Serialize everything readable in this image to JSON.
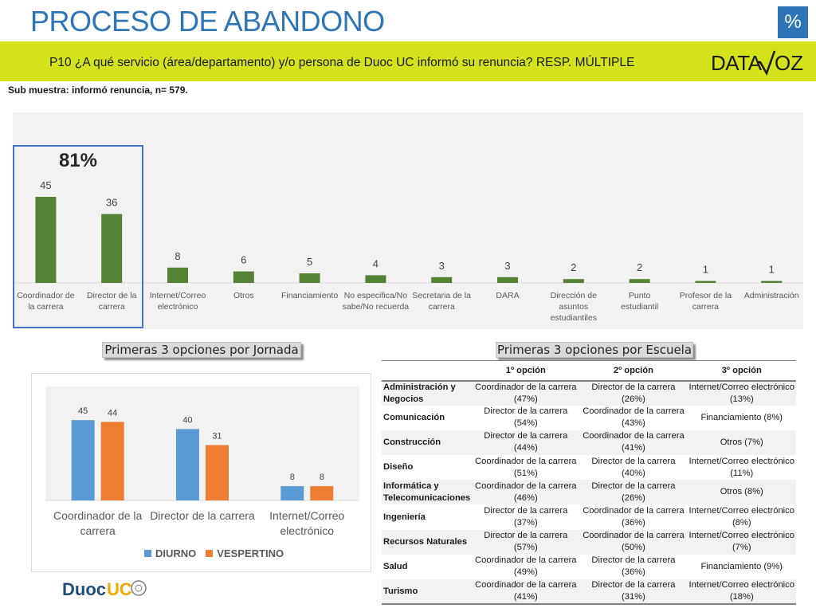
{
  "header": {
    "title": "PROCESO DE ABANDONO",
    "percent_badge": "%",
    "question": "P10 ¿A qué servicio (área/departamento) y/o persona de Duoc UC informó su renuncia? RESP. MÚLTIPLE",
    "logo_text": "DATAVOZ",
    "submuestra": "Sub muestra: informó renuncia, n= 579."
  },
  "highlight": {
    "label": "81%"
  },
  "colors": {
    "green": "#548235",
    "diurno": "#5B9BD5",
    "vespertino": "#ED7D31",
    "accent": "#D3E21B",
    "title": "#2E75B6"
  },
  "sections": {
    "jornada_title": "Primeras 3 opciones por Jornada",
    "escuela_title": "Primeras 3 opciones por Escuela"
  },
  "chart_data": [
    {
      "type": "bar",
      "categories": [
        "Coordinador de la carrera",
        "Director de la carrera",
        "Internet/Correo electrónico",
        "Otros",
        "Financiamiento",
        "No especifica/No sabe/No recuerda",
        "Secretaria de la carrera",
        "DARA",
        "Dirección de asuntos estudiantiles",
        "Punto estudiantil",
        "Profesor de la carrera",
        "Administración"
      ],
      "values": [
        45,
        36,
        8,
        6,
        5,
        4,
        3,
        3,
        2,
        2,
        1,
        1
      ],
      "ylim": [
        0,
        50
      ],
      "grid": false,
      "legend": "none"
    },
    {
      "type": "bar",
      "categories": [
        "Coordinador de la carrera",
        "Director de la carrera",
        "Internet/Correo electrónico"
      ],
      "series": [
        {
          "name": "DIURNO",
          "values": [
            45,
            40,
            8
          ]
        },
        {
          "name": "VESPERTINO",
          "values": [
            44,
            31,
            8
          ]
        }
      ],
      "ylim": [
        0,
        50
      ],
      "grid": false,
      "legend": "bottom"
    }
  ],
  "escuela_table": {
    "headers": [
      "",
      "1º opción",
      "2º opción",
      "3º opción"
    ],
    "rows": [
      [
        "Administración y Negocios",
        "Coordinador de la carrera (47%)",
        "Director de la carrera (26%)",
        "Internet/Correo electrónico (13%)"
      ],
      [
        "Comunicación",
        "Director de la carrera (54%)",
        "Coordinador de la carrera (43%)",
        "Financiamiento (8%)"
      ],
      [
        "Construcción",
        "Director de la carrera (44%)",
        "Coordinador de la carrera (41%)",
        "Otros (7%)"
      ],
      [
        "Diseño",
        "Coordinador de la carrera (51%)",
        "Director de la carrera (40%)",
        "Internet/Correo electrónico (11%)"
      ],
      [
        "Informática y Telecomunicaciones",
        "Coordinador de la carrera (46%)",
        "Director de la carrera (26%)",
        "Otros (8%)"
      ],
      [
        "Ingeniería",
        "Director de la carrera (37%)",
        "Coordinador de la carrera (36%)",
        "Internet/Correo electrónico (8%)"
      ],
      [
        "Recursos Naturales",
        "Director de la carrera (57%)",
        "Coordinador de la carrera (50%)",
        "Internet/Correo electrónico (7%)"
      ],
      [
        "Salud",
        "Coordinador de la carrera (49%)",
        "Director de la carrera (36%)",
        "Financiamiento (9%)"
      ],
      [
        "Turismo",
        "Coordinador de la carrera (41%)",
        "Director de la carrera (31%)",
        "Internet/Correo electrónico (18%)"
      ]
    ]
  },
  "footer": {
    "logo_text": "DuocUC"
  }
}
